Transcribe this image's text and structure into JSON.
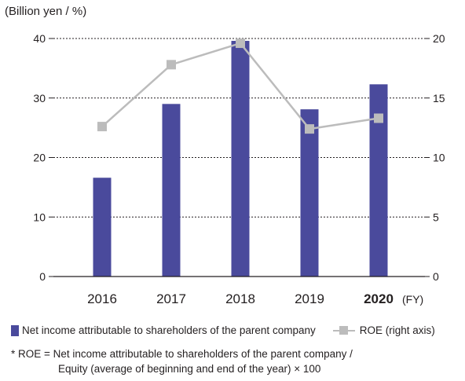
{
  "unit_label": "(Billion yen / %)",
  "colors": {
    "bar": "#4a4a9c",
    "line": "#bcbcbc",
    "axis": "#231f20"
  },
  "chart_data": {
    "type": "bar+line",
    "categories": [
      "2016",
      "2017",
      "2018",
      "2019",
      "2020"
    ],
    "highlight_category": "2020",
    "x_unit": "(FY)",
    "y_left": {
      "ticks": [
        "0",
        "10",
        "20",
        "30",
        "40"
      ],
      "lim": [
        0,
        40
      ]
    },
    "y_right": {
      "ticks": [
        "0",
        "5",
        "10",
        "15",
        "20"
      ],
      "lim": [
        0,
        20
      ]
    },
    "grid": "dotted horizontal",
    "series": [
      {
        "name": "Net income attributable to shareholders of the parent company",
        "type": "bar",
        "axis": "left",
        "values": [
          16.6,
          29.0,
          39.6,
          28.1,
          32.3
        ]
      },
      {
        "name": "ROE (right axis)",
        "type": "line",
        "axis": "right",
        "values": [
          12.6,
          17.8,
          19.6,
          12.4,
          13.3
        ]
      }
    ]
  },
  "legend": {
    "bar_label": "Net income attributable to shareholders of the parent company",
    "line_label": "ROE (right axis)"
  },
  "footnote": {
    "line1": "* ROE = Net income attributable to shareholders of the parent company /",
    "line2": "Equity (average of beginning and end of the year) × 100"
  }
}
